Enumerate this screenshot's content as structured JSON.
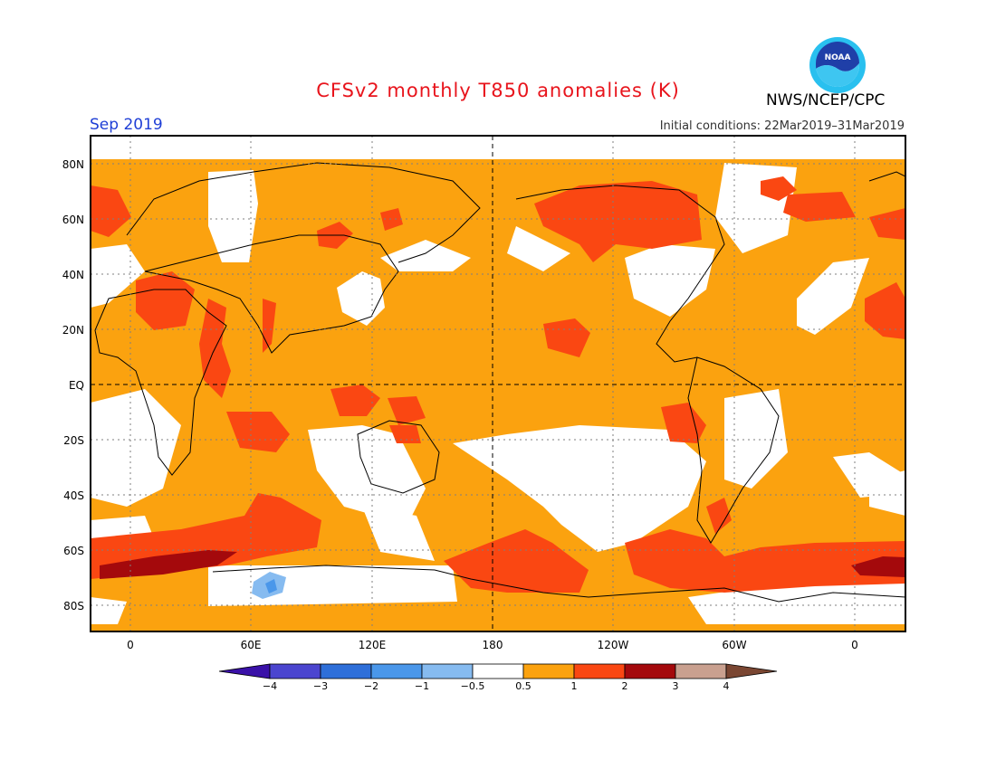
{
  "title": "CFSv2 monthly T850 anomalies (K)",
  "month": "Sep 2019",
  "organization": "NWS/NCEP/CPC",
  "initial_conditions": "Initial conditions: 22Mar2019–31Mar2019",
  "logo_text": "NOAA",
  "lat_labels": [
    "80N",
    "60N",
    "40N",
    "20N",
    "EQ",
    "20S",
    "40S",
    "60S",
    "80S"
  ],
  "lon_labels": [
    "0",
    "60E",
    "120E",
    "180",
    "120W",
    "60W",
    "0"
  ],
  "colorbar": {
    "labels": [
      "−4",
      "−3",
      "−2",
      "−1",
      "−0.5",
      "0.5",
      "1",
      "2",
      "3",
      "4"
    ],
    "colors": [
      "#3a11a8",
      "#4b45cf",
      "#2e6fd9",
      "#4a97ea",
      "#86bbf0",
      "#ffffff",
      "#fba20f",
      "#fa4712",
      "#a4090c",
      "#c9a08f",
      "#7a4632"
    ]
  },
  "map_colors": {
    "ocean_mild": "#fba20f",
    "warm": "#fa4712",
    "hot": "#a4090c",
    "cool": "#86bbf0",
    "cooler": "#4a97ea",
    "neutral": "#ffffff"
  }
}
